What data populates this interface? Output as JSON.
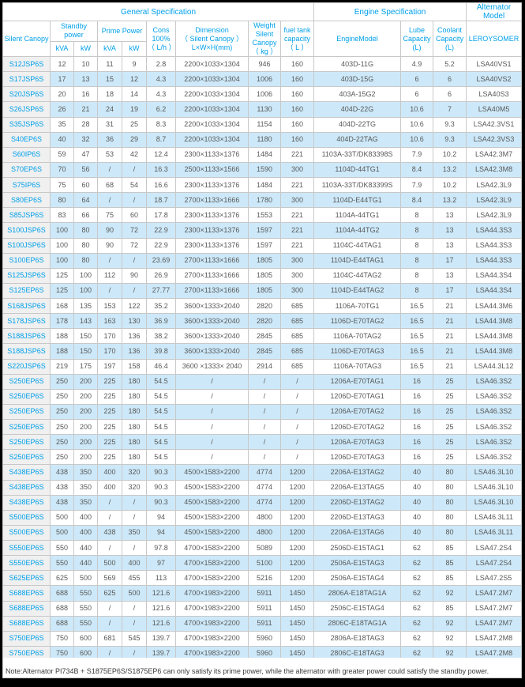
{
  "colors": {
    "accent": "#00a0e9",
    "stripe_blue": "#cde9f9",
    "model_column_bg": "#f0f0f0",
    "border": "#c8c8c8"
  },
  "header": {
    "group_general": "General Specification",
    "group_engine": "Engine Specification",
    "group_alternator": "Alternator Model",
    "silent_canopy": "Silent Canopy",
    "standby_power": "Standby\npower",
    "prime_power": "Prime Power",
    "kva": "kVA",
    "kw": "kW",
    "cons": "Cons\n100%\n（ L/h ）",
    "dimension": "Dimension\n（ Silent Canopy ）\nL×W×H(mm)",
    "weight": "Weight\nSilent\nCanopy\n（ kg ）",
    "fuel_tank": "fuel tank\ncapacity\n（ L ）",
    "engine_model": "EngineModel",
    "lube": "Lube\nCapacity\n(L)",
    "coolant": "Coolant\nCapacity\n(L)",
    "leroysomer": "LEROYSOMER"
  },
  "table": {
    "rows": [
      [
        "S12JSP6S",
        "12",
        "10",
        "11",
        "9",
        "2.8",
        "2200×1033×1304",
        "946",
        "160",
        "403D-11G",
        "4.9",
        "5.2",
        "LSA40VS1"
      ],
      [
        "S17JSP6S",
        "17",
        "13",
        "15",
        "12",
        "4.3",
        "2200×1033×1304",
        "1006",
        "160",
        "403D-15G",
        "6",
        "6",
        "LSA40VS2"
      ],
      [
        "S20JSP6S",
        "20",
        "16",
        "18",
        "14",
        "4.3",
        "2200×1033×1304",
        "1006",
        "160",
        "403A-15G2",
        "6",
        "6",
        "LSA40S3"
      ],
      [
        "S26JSP6S",
        "26",
        "21",
        "24",
        "19",
        "6.2",
        "2200×1033×1304",
        "1130",
        "160",
        "404D-22G",
        "10.6",
        "7",
        "LSA40M5"
      ],
      [
        "S35JSP6S",
        "35",
        "28",
        "31",
        "25",
        "8.3",
        "2200×1033×1304",
        "1154",
        "160",
        "404D-22TG",
        "10.6",
        "9.3",
        "LSA42.3VS1"
      ],
      [
        "S40EP6S",
        "40",
        "32",
        "36",
        "29",
        "8.7",
        "2200×1033×1304",
        "1180",
        "160",
        "404D-22TAG",
        "10.6",
        "9.3",
        "LSA42.3VS3"
      ],
      [
        "S60IP6S",
        "59",
        "47",
        "53",
        "42",
        "12.4",
        "2300×1133×1376",
        "1484",
        "221",
        "1103A-33T/DK83398S",
        "7.9",
        "10.2",
        "LSA42.3M7"
      ],
      [
        "S70EP6S",
        "70",
        "56",
        "/",
        "/",
        "16.3",
        "2500×1133×1566",
        "1590",
        "300",
        "1104D-44TG1",
        "8.4",
        "13.2",
        "LSA42.3M8"
      ],
      [
        "S75IP6S",
        "75",
        "60",
        "68",
        "54",
        "16.6",
        "2300×1133×1376",
        "1484",
        "221",
        "1103A-33T/DK83399S",
        "7.9",
        "10.2",
        "LSA42.3L9"
      ],
      [
        "S80EP6S",
        "80",
        "64",
        "/",
        "/",
        "18.7",
        "2700×1133×1666",
        "1780",
        "300",
        "1104D-E44TG1",
        "8.4",
        "13.2",
        "LSA42.3L9"
      ],
      [
        "S85JSP6S",
        "83",
        "66",
        "75",
        "60",
        "17.8",
        "2300×1133×1376",
        "1553",
        "221",
        "1104A-44TG1",
        "8",
        "13",
        "LSA42.3L9"
      ],
      [
        "S100JSP6S",
        "100",
        "80",
        "90",
        "72",
        "22.9",
        "2300×1133×1376",
        "1597",
        "221",
        "1104A-44TG2",
        "8",
        "13",
        "LSA44.3S3"
      ],
      [
        "S100JSP6S",
        "100",
        "80",
        "90",
        "72",
        "22.9",
        "2300×1133×1376",
        "1597",
        "221",
        "1104C-44TAG1",
        "8",
        "13",
        "LSA44.3S3"
      ],
      [
        "S100EP6S",
        "100",
        "80",
        "/",
        "/",
        "23.69",
        "2700×1133×1666",
        "1805",
        "300",
        "1104D-E44TAG1",
        "8",
        "17",
        "LSA44.3S3"
      ],
      [
        "S125JSP6S",
        "125",
        "100",
        "112",
        "90",
        "26.9",
        "2700×1133×1666",
        "1805",
        "300",
        "1104C-44TAG2",
        "8",
        "13",
        "LSA44.3S4"
      ],
      [
        "S125EP6S",
        "125",
        "100",
        "/",
        "/",
        "27.77",
        "2700×1133×1666",
        "1805",
        "300",
        "1104D-E44TAG2",
        "8",
        "17",
        "LSA44.3S4"
      ],
      [
        "S168JSP6S",
        "168",
        "135",
        "153",
        "122",
        "35.2",
        "3600×1333×2040",
        "2820",
        "685",
        "1106A-70TG1",
        "16.5",
        "21",
        "LSA44.3M6"
      ],
      [
        "S178JSP6S",
        "178",
        "143",
        "163",
        "130",
        "36.9",
        "3600×1333×2040",
        "2820",
        "685",
        "1106D-E70TAG2",
        "16.5",
        "21",
        "LSA44.3M8"
      ],
      [
        "S188JSP6S",
        "188",
        "150",
        "170",
        "136",
        "38.2",
        "3600×1333×2040",
        "2845",
        "685",
        "1106A-70TAG2",
        "16.5",
        "21",
        "LSA44.3M8"
      ],
      [
        "S188JSP6S",
        "188",
        "150",
        "170",
        "136",
        "39.8",
        "3600×1333×2040",
        "2845",
        "685",
        "1106D-E70TAG3",
        "16.5",
        "21",
        "LSA44.3M8"
      ],
      [
        "S220JSP6S",
        "219",
        "175",
        "197",
        "158",
        "46.4",
        "3600 ×1333× 2040",
        "2914",
        "685",
        "1106A-70TAG3",
        "16.5",
        "21",
        "LSA44.3L12"
      ],
      [
        "S250EP6S",
        "250",
        "200",
        "225",
        "180",
        "54.5",
        "/",
        "/",
        "/",
        "1206A-E70TAG1",
        "16",
        "25",
        "LSA46.3S2"
      ],
      [
        "S250EP6S",
        "250",
        "200",
        "225",
        "180",
        "54.5",
        "/",
        "/",
        "/",
        "1206D-E70TAG1",
        "16",
        "25",
        "LSA46.3S2"
      ],
      [
        "S250EP6S",
        "250",
        "200",
        "225",
        "180",
        "54.5",
        "/",
        "/",
        "/",
        "1206A-E70TAG2",
        "16",
        "25",
        "LSA46.3S2"
      ],
      [
        "S250EP6S",
        "250",
        "200",
        "225",
        "180",
        "54.5",
        "/",
        "/",
        "/",
        "1206D-E70TAG2",
        "16",
        "25",
        "LSA46.3S2"
      ],
      [
        "S250EP6S",
        "250",
        "200",
        "225",
        "180",
        "54.5",
        "/",
        "/",
        "/",
        "1206A-E70TAG3",
        "16",
        "25",
        "LSA46.3S2"
      ],
      [
        "S250EP6S",
        "250",
        "200",
        "225",
        "180",
        "54.5",
        "/",
        "/",
        "/",
        "1206D-E70TAG3",
        "16",
        "25",
        "LSA46.3S2"
      ],
      [
        "S438EP6S",
        "438",
        "350",
        "400",
        "320",
        "90.3",
        "4500×1583×2200",
        "4774",
        "1200",
        "2206A-E13TAG2",
        "40",
        "80",
        "LSA46.3L10"
      ],
      [
        "S438EP6S",
        "438",
        "350",
        "400",
        "320",
        "90.3",
        "4500×1583×2200",
        "4774",
        "1200",
        "2206A-E13TAG5",
        "40",
        "80",
        "LSA46.3L10"
      ],
      [
        "S438EP6S",
        "438",
        "350",
        "/",
        "/",
        "90.3",
        "4500×1583×2200",
        "4774",
        "1200",
        "2206D-E13TAG2",
        "40",
        "80",
        "LSA46.3L10"
      ],
      [
        "S500EP6S",
        "500",
        "400",
        "/",
        "/",
        "94",
        "4500×1583×2200",
        "4800",
        "1200",
        "2206D-E13TAG3",
        "40",
        "80",
        "LSA46.3L11"
      ],
      [
        "S500EP6S",
        "500",
        "400",
        "438",
        "350",
        "94",
        "4500×1583×2200",
        "4800",
        "1200",
        "2206A-E13TAG6",
        "40",
        "80",
        "LSA46.3L11"
      ],
      [
        "S550EP6S",
        "550",
        "440",
        "/",
        "/",
        "97.8",
        "4700×1583×2200",
        "5089",
        "1200",
        "2506D-E15TAG1",
        "62",
        "85",
        "LSA47.2S4"
      ],
      [
        "S550EP6S",
        "550",
        "440",
        "500",
        "400",
        "97",
        "4700×1583×2200",
        "5100",
        "1200",
        "2506A-E15TAG3",
        "62",
        "85",
        "LSA47.2S4"
      ],
      [
        "S625EP6S",
        "625",
        "500",
        "569",
        "455",
        "113",
        "4700×1583×2200",
        "5216",
        "1200",
        "2506A-E15TAG4",
        "62",
        "85",
        "LSA47.2S5"
      ],
      [
        "S688EP6S",
        "688",
        "550",
        "625",
        "500",
        "121.6",
        "4700×1983×2200",
        "5911",
        "1450",
        "2806A-E18TAG1A",
        "62",
        "92",
        "LSA47.2M7"
      ],
      [
        "S688EP6S",
        "688",
        "550",
        "/",
        "/",
        "121.6",
        "4700×1983×2200",
        "5911",
        "1450",
        "2506C-E15TAG4",
        "62",
        "85",
        "LSA47.2M7"
      ],
      [
        "S688EP6S",
        "688",
        "550",
        "/",
        "/",
        "121.6",
        "4700×1983×2200",
        "5911",
        "1450",
        "2806C-E18TAG1A",
        "62",
        "92",
        "LSA47.2M7"
      ],
      [
        "S750EP6S",
        "750",
        "600",
        "681",
        "545",
        "139.7",
        "4700×1983×2200",
        "5960",
        "1450",
        "2806A-E18TAG3",
        "62",
        "92",
        "LSA47.2M8"
      ],
      [
        "S750EP6S",
        "750",
        "600",
        "/",
        "/",
        "139.7",
        "4700×1983×2200",
        "5960",
        "1450",
        "2806C-E18TAG3",
        "62",
        "92",
        "LSA47.2M8"
      ]
    ]
  },
  "note": "Note:Alternator PI734B + S1875EP6S/S1875EP6 can only satisfy its prime power, while the alternator with greater power could satisfy the standby power."
}
